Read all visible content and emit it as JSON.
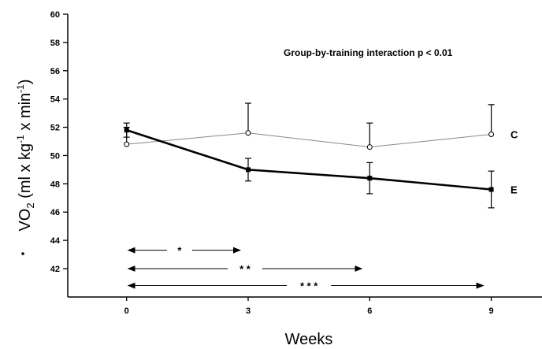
{
  "chart_data": {
    "type": "line",
    "annotation": "Group-by-training interaction p < 0.01",
    "xlabel": "Weeks",
    "ylabel_parts": [
      "V",
      "O",
      "2",
      " (ml x kg",
      "-1",
      " x min",
      "-1",
      ")"
    ],
    "x": [
      0,
      3,
      6,
      9
    ],
    "xlim": [
      -1.4,
      10.2
    ],
    "ylim": [
      40,
      60
    ],
    "yticks": [
      42,
      44,
      46,
      48,
      50,
      52,
      54,
      56,
      58,
      60
    ],
    "series": [
      {
        "name": "C",
        "values": [
          50.8,
          51.6,
          50.6,
          51.5
        ],
        "error": [
          1.2,
          2.1,
          1.7,
          2.1
        ],
        "error_direction": "up",
        "marker": "open-circle",
        "line": "thin",
        "color": "#888888"
      },
      {
        "name": "E",
        "values": [
          51.8,
          49.0,
          48.4,
          47.6
        ],
        "error": [
          0.5,
          0.8,
          1.1,
          1.3
        ],
        "error_direction": "both",
        "marker": "filled-square",
        "line": "thick",
        "color": "#000000"
      }
    ],
    "significance": [
      {
        "from": 0,
        "to": 3,
        "label": "*",
        "y": 43.3
      },
      {
        "from": 0,
        "to": 6,
        "label": "* *",
        "y": 42.0
      },
      {
        "from": 0,
        "to": 9,
        "label": "* * *",
        "y": 40.8
      }
    ]
  }
}
